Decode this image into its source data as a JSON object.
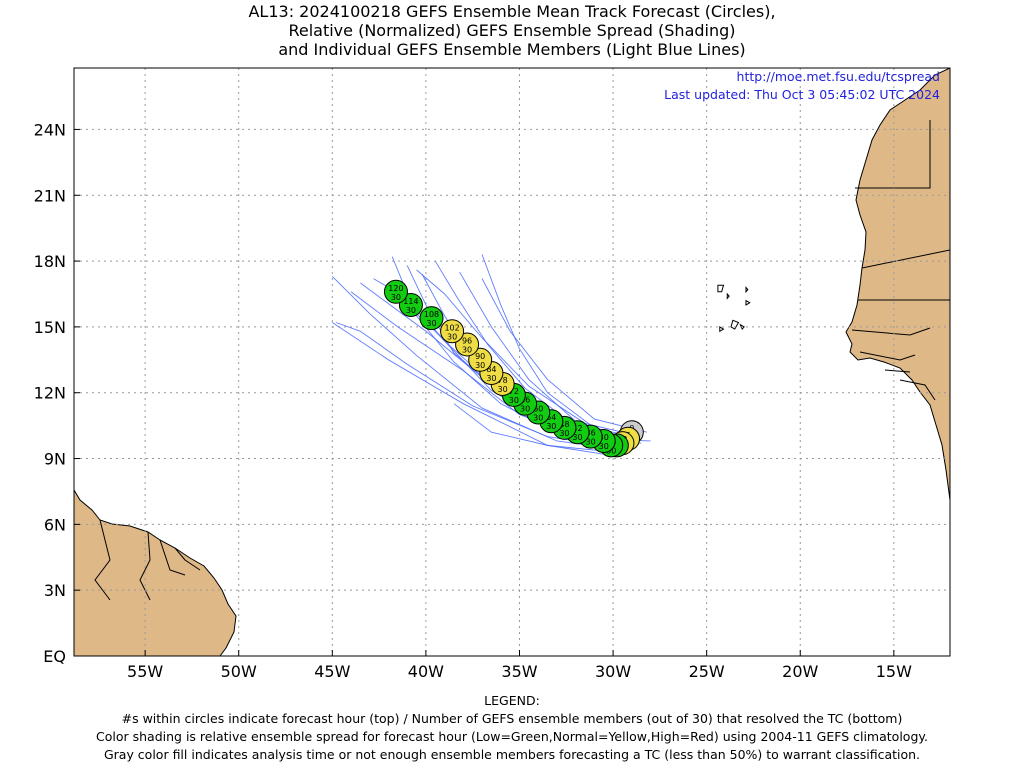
{
  "title_lines": [
    "AL13: 2024100218 GEFS Ensemble Mean Track Forecast (Circles),",
    "Relative (Normalized) GEFS Ensemble Spread (Shading)",
    "and Individual GEFS Ensemble Members (Light Blue Lines)"
  ],
  "credit": {
    "url": "http://moe.met.fsu.edu/tcspread",
    "updated": "Last updated: Thu Oct 3 05:45:02 UTC 2024"
  },
  "legend_lines": [
    "LEGEND:",
    "#s within circles indicate forecast hour (top) / Number of GEFS ensemble members (out of 30) that resolved the TC (bottom)",
    "Color shading is relative ensemble spread for forecast hour (Low=Green,Normal=Yellow,High=Red) using 2004-11 GEFS climatology.",
    "Gray color fill indicates analysis time or not enough ensemble members forecasting a TC (less than 50%) to warrant classification."
  ],
  "map": {
    "lon_range": [
      -58.8,
      -12
    ],
    "lat_range": [
      0,
      26.8
    ],
    "lon_ticks": [
      {
        "lon": -55,
        "label": "55W"
      },
      {
        "lon": -50,
        "label": "50W"
      },
      {
        "lon": -45,
        "label": "45W"
      },
      {
        "lon": -40,
        "label": "40W"
      },
      {
        "lon": -35,
        "label": "35W"
      },
      {
        "lon": -30,
        "label": "30W"
      },
      {
        "lon": -25,
        "label": "25W"
      },
      {
        "lon": -20,
        "label": "20W"
      },
      {
        "lon": -15,
        "label": "15W"
      }
    ],
    "lat_ticks": [
      {
        "lat": 0,
        "label": "EQ"
      },
      {
        "lat": 3,
        "label": "3N"
      },
      {
        "lat": 6,
        "label": "6N"
      },
      {
        "lat": 9,
        "label": "9N"
      },
      {
        "lat": 12,
        "label": "12N"
      },
      {
        "lat": 15,
        "label": "15N"
      },
      {
        "lat": 18,
        "label": "18N"
      },
      {
        "lat": 21,
        "label": "21N"
      },
      {
        "lat": 24,
        "label": "24N"
      }
    ],
    "colors": {
      "land": "#deb887",
      "ocean": "#ffffff",
      "member_tracks": "#4466ff",
      "low_spread": "#11cc11",
      "normal_spread": "#eedd44",
      "analysis": "#cccccc",
      "credit_text": "#2222dd"
    }
  },
  "mean_track": [
    {
      "hour": "0",
      "members": "",
      "lon": -29.0,
      "lat": 10.2,
      "spread": "gray"
    },
    {
      "hour": "6",
      "members": "30",
      "lon": -29.2,
      "lat": 9.9,
      "spread": "yellow"
    },
    {
      "hour": "12",
      "members": "30",
      "lon": -29.5,
      "lat": 9.7,
      "spread": "yellow"
    },
    {
      "hour": "18",
      "members": "30",
      "lon": -29.8,
      "lat": 9.6,
      "spread": "green"
    },
    {
      "hour": "24",
      "members": "30",
      "lon": -30.1,
      "lat": 9.6,
      "spread": "green"
    },
    {
      "hour": "30",
      "members": "30",
      "lon": -30.5,
      "lat": 9.8,
      "spread": "green"
    },
    {
      "hour": "36",
      "members": "30",
      "lon": -31.2,
      "lat": 10.0,
      "spread": "green"
    },
    {
      "hour": "42",
      "members": "30",
      "lon": -31.9,
      "lat": 10.2,
      "spread": "green"
    },
    {
      "hour": "48",
      "members": "30",
      "lon": -32.6,
      "lat": 10.4,
      "spread": "green"
    },
    {
      "hour": "54",
      "members": "30",
      "lon": -33.3,
      "lat": 10.7,
      "spread": "green"
    },
    {
      "hour": "60",
      "members": "30",
      "lon": -34.0,
      "lat": 11.1,
      "spread": "green"
    },
    {
      "hour": "66",
      "members": "30",
      "lon": -34.7,
      "lat": 11.5,
      "spread": "green"
    },
    {
      "hour": "72",
      "members": "30",
      "lon": -35.3,
      "lat": 11.9,
      "spread": "green"
    },
    {
      "hour": "78",
      "members": "30",
      "lon": -35.9,
      "lat": 12.4,
      "spread": "yellow"
    },
    {
      "hour": "84",
      "members": "30",
      "lon": -36.5,
      "lat": 12.9,
      "spread": "yellow"
    },
    {
      "hour": "90",
      "members": "30",
      "lon": -37.1,
      "lat": 13.5,
      "spread": "yellow"
    },
    {
      "hour": "96",
      "members": "30",
      "lon": -37.8,
      "lat": 14.2,
      "spread": "yellow"
    },
    {
      "hour": "102",
      "members": "30",
      "lon": -38.6,
      "lat": 14.8,
      "spread": "yellow"
    },
    {
      "hour": "108",
      "members": "30",
      "lon": -39.7,
      "lat": 15.4,
      "spread": "green"
    },
    {
      "hour": "114",
      "members": "30",
      "lon": -40.8,
      "lat": 16.0,
      "spread": "green"
    },
    {
      "hour": "120",
      "members": "30",
      "lon": -41.6,
      "lat": 16.6,
      "spread": "green"
    }
  ],
  "member_tracks": [
    [
      [
        -28.5,
        9.7
      ],
      [
        -32,
        10.3
      ],
      [
        -36,
        12.0
      ],
      [
        -40,
        14.8
      ],
      [
        -43.5,
        17.0
      ]
    ],
    [
      [
        -28.0,
        9.8
      ],
      [
        -31.5,
        9.9
      ],
      [
        -35,
        11.0
      ],
      [
        -38,
        13.0
      ],
      [
        -41.5,
        15.0
      ],
      [
        -44.0,
        16.6
      ]
    ],
    [
      [
        -29.0,
        9.5
      ],
      [
        -32.5,
        10.1
      ],
      [
        -36.5,
        12.1
      ],
      [
        -39.5,
        14.8
      ],
      [
        -42.0,
        16.8
      ]
    ],
    [
      [
        -28.5,
        10.0
      ],
      [
        -31.5,
        10.6
      ],
      [
        -34.5,
        12.3
      ],
      [
        -37.0,
        14.5
      ],
      [
        -39.0,
        16.5
      ],
      [
        -40.5,
        17.6
      ]
    ],
    [
      [
        -29.0,
        9.6
      ],
      [
        -32.0,
        10.7
      ],
      [
        -34.5,
        12.6
      ],
      [
        -36.5,
        15.0
      ],
      [
        -38.2,
        17.5
      ]
    ],
    [
      [
        -28.2,
        10.2
      ],
      [
        -31.0,
        10.8
      ],
      [
        -33.5,
        12.6
      ],
      [
        -35.5,
        14.8
      ],
      [
        -37.0,
        17.2
      ]
    ],
    [
      [
        -29.5,
        9.4
      ],
      [
        -33.0,
        9.8
      ],
      [
        -37.0,
        11.3
      ],
      [
        -40.5,
        13.7
      ],
      [
        -43.0,
        15.6
      ],
      [
        -45.0,
        17.3
      ]
    ],
    [
      [
        -30.0,
        9.3
      ],
      [
        -33.5,
        9.6
      ],
      [
        -38.0,
        11.5
      ],
      [
        -42.0,
        13.5
      ],
      [
        -45.0,
        15.2
      ]
    ],
    [
      [
        -28.8,
        9.9
      ],
      [
        -32.0,
        10.4
      ],
      [
        -35.5,
        11.7
      ],
      [
        -38.5,
        13.8
      ],
      [
        -40.0,
        16.0
      ],
      [
        -41.0,
        17.8
      ]
    ],
    [
      [
        -29.3,
        9.7
      ],
      [
        -33.0,
        10.2
      ],
      [
        -36.0,
        11.5
      ],
      [
        -38.5,
        13.4
      ],
      [
        -40.5,
        15.5
      ],
      [
        -41.8,
        18.2
      ]
    ],
    [
      [
        -28.5,
        9.9
      ],
      [
        -31.0,
        10.4
      ],
      [
        -33.5,
        12.0
      ],
      [
        -35.0,
        14.0
      ],
      [
        -36.0,
        16.0
      ],
      [
        -37.0,
        18.3
      ]
    ],
    [
      [
        -29.8,
        9.5
      ],
      [
        -33.5,
        10.0
      ],
      [
        -37.5,
        11.4
      ],
      [
        -41.0,
        13.3
      ],
      [
        -43.5,
        14.8
      ],
      [
        -44.8,
        15.2
      ]
    ],
    [
      [
        -28.9,
        9.8
      ],
      [
        -32.2,
        10.6
      ],
      [
        -34.7,
        12.2
      ],
      [
        -36.7,
        14.2
      ],
      [
        -38.3,
        16.3
      ],
      [
        -39.5,
        18.0
      ]
    ],
    [
      [
        -29.5,
        9.6
      ],
      [
        -33.0,
        10.5
      ],
      [
        -35.5,
        11.8
      ],
      [
        -37.5,
        13.5
      ],
      [
        -39.0,
        15.5
      ],
      [
        -40.2,
        17.4
      ]
    ],
    [
      [
        -30.5,
        9.2
      ],
      [
        -33.5,
        9.6
      ],
      [
        -36.5,
        10.2
      ],
      [
        -38.5,
        11.5
      ]
    ],
    [
      [
        -29.2,
        9.7
      ],
      [
        -32.5,
        10.1
      ],
      [
        -35.8,
        11.9
      ],
      [
        -38.8,
        14.2
      ],
      [
        -41.2,
        16.4
      ],
      [
        -42.8,
        17.2
      ]
    ]
  ],
  "islands": [
    [
      [
        -24.4,
        16.9
      ],
      [
        -24.1,
        16.9
      ],
      [
        -24.2,
        16.6
      ],
      [
        -24.4,
        16.6
      ]
    ],
    [
      [
        -22.9,
        16.8
      ],
      [
        -22.8,
        16.7
      ],
      [
        -22.9,
        16.6
      ]
    ],
    [
      [
        -22.9,
        16.2
      ],
      [
        -22.7,
        16.1
      ],
      [
        -22.9,
        16.0
      ]
    ],
    [
      [
        -23.6,
        15.3
      ],
      [
        -23.3,
        15.2
      ],
      [
        -23.5,
        14.9
      ],
      [
        -23.7,
        15.0
      ]
    ],
    [
      [
        -24.3,
        15.0
      ],
      [
        -24.1,
        14.9
      ],
      [
        -24.3,
        14.8
      ]
    ],
    [
      [
        -23.2,
        15.1
      ],
      [
        -23.0,
        15.0
      ],
      [
        -23.1,
        14.9
      ]
    ],
    [
      [
        -23.9,
        16.5
      ],
      [
        -23.8,
        16.4
      ],
      [
        -23.9,
        16.3
      ]
    ]
  ]
}
